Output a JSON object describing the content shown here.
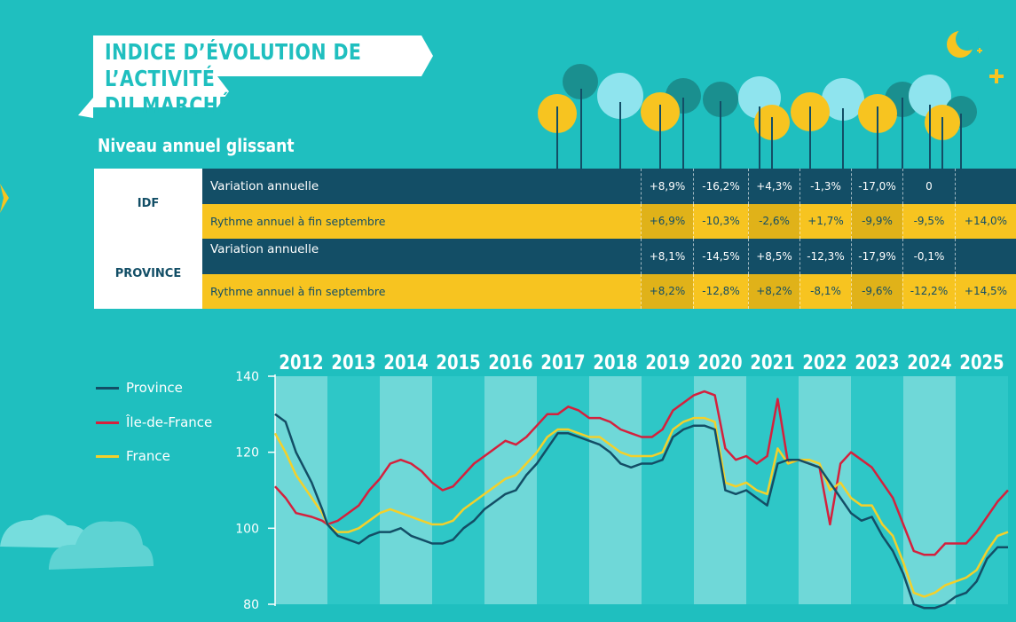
{
  "header": {
    "title_line1": "INDICE D’ÉVOLUTION DE L’ACTIVITÉ",
    "title_line2": "DU MARCHÉ",
    "subtitle": "Niveau annuel glissant"
  },
  "colors": {
    "background": "#1fbfbf",
    "dark_row": "#134e66",
    "yellow_row": "#f7c420",
    "province": "#134e66",
    "idf": "#d4213d",
    "france": "#f4d02a"
  },
  "table": {
    "regions": [
      {
        "name": "IDF",
        "rows": [
          {
            "label": "Variation annuelle",
            "style": "dark",
            "values": [
              "+8,9%",
              "-16,2%",
              "+4,3%",
              "-1,3%",
              "-17,0%",
              "0",
              ""
            ]
          },
          {
            "label": "Rythme annuel à fin septembre",
            "style": "yellow",
            "values": [
              "+6,9%",
              "-10,3%",
              "-2,6%",
              "+1,7%",
              "-9,9%",
              "-9,5%",
              "+14,0%"
            ]
          }
        ]
      },
      {
        "name": "PROVINCE",
        "rows": [
          {
            "label": "Variation annuelle",
            "style": "dark",
            "values": [
              "+8,1%",
              "-14,5%",
              "+8,5%",
              "-12,3%",
              "-17,9%",
              "-0,1%",
              ""
            ]
          },
          {
            "label": "Rythme annuel à fin septembre",
            "style": "yellow",
            "values": [
              "+8,2%",
              "-12,8%",
              "+8,2%",
              "-8,1%",
              "-9,6%",
              "-12,2%",
              "+14,5%"
            ]
          }
        ]
      }
    ]
  },
  "legend": [
    {
      "name": "Province",
      "color": "#134e66"
    },
    {
      "name": "Île-de-France",
      "color": "#d4213d"
    },
    {
      "name": "France",
      "color": "#f4d02a"
    }
  ],
  "chart_data": {
    "type": "line",
    "x_categories": [
      "2012",
      "2013",
      "2014",
      "2015",
      "2016",
      "2017",
      "2018",
      "2019",
      "2020",
      "2021",
      "2022",
      "2023",
      "2024",
      "2025"
    ],
    "ylim": [
      80,
      140
    ],
    "yticks": [
      80,
      100,
      120,
      140
    ],
    "ytick_labels": [
      "80",
      "100",
      "120",
      "140"
    ],
    "series": [
      {
        "name": "Province",
        "points": [
          [
            0.0,
            130
          ],
          [
            0.2,
            128
          ],
          [
            0.4,
            120
          ],
          [
            0.7,
            112
          ],
          [
            0.9,
            105
          ],
          [
            1.0,
            101
          ],
          [
            1.2,
            98
          ],
          [
            1.4,
            97
          ],
          [
            1.6,
            96
          ],
          [
            1.8,
            98
          ],
          [
            2.0,
            99
          ],
          [
            2.2,
            99
          ],
          [
            2.4,
            100
          ],
          [
            2.6,
            98
          ],
          [
            2.8,
            97
          ],
          [
            3.0,
            96
          ],
          [
            3.2,
            96
          ],
          [
            3.4,
            97
          ],
          [
            3.6,
            100
          ],
          [
            3.8,
            102
          ],
          [
            4.0,
            105
          ],
          [
            4.2,
            107
          ],
          [
            4.4,
            109
          ],
          [
            4.6,
            110
          ],
          [
            4.8,
            114
          ],
          [
            5.0,
            117
          ],
          [
            5.2,
            121
          ],
          [
            5.4,
            125
          ],
          [
            5.6,
            125
          ],
          [
            5.8,
            124
          ],
          [
            6.0,
            123
          ],
          [
            6.2,
            122
          ],
          [
            6.4,
            120
          ],
          [
            6.6,
            117
          ],
          [
            6.8,
            116
          ],
          [
            7.0,
            117
          ],
          [
            7.2,
            117
          ],
          [
            7.4,
            118
          ],
          [
            7.6,
            124
          ],
          [
            7.8,
            126
          ],
          [
            8.0,
            127
          ],
          [
            8.2,
            127
          ],
          [
            8.4,
            126
          ],
          [
            8.6,
            110
          ],
          [
            8.8,
            109
          ],
          [
            9.0,
            110
          ],
          [
            9.2,
            108
          ],
          [
            9.4,
            106
          ],
          [
            9.6,
            117
          ],
          [
            9.8,
            118
          ],
          [
            10.0,
            118
          ],
          [
            10.2,
            117
          ],
          [
            10.4,
            116
          ],
          [
            10.6,
            112
          ],
          [
            10.8,
            108
          ],
          [
            11.0,
            104
          ],
          [
            11.2,
            102
          ],
          [
            11.4,
            103
          ],
          [
            11.6,
            98
          ],
          [
            11.8,
            94
          ],
          [
            12.0,
            88
          ],
          [
            12.2,
            80
          ],
          [
            12.4,
            79
          ],
          [
            12.6,
            79
          ],
          [
            12.8,
            80
          ],
          [
            13.0,
            82
          ],
          [
            13.2,
            83
          ],
          [
            13.4,
            86
          ],
          [
            13.6,
            92
          ],
          [
            13.8,
            95
          ],
          [
            14.0,
            95
          ]
        ]
      },
      {
        "name": "Île-de-France",
        "points": [
          [
            0.0,
            111
          ],
          [
            0.2,
            108
          ],
          [
            0.4,
            104
          ],
          [
            0.7,
            103
          ],
          [
            0.9,
            102
          ],
          [
            1.0,
            101
          ],
          [
            1.2,
            102
          ],
          [
            1.4,
            104
          ],
          [
            1.6,
            106
          ],
          [
            1.8,
            110
          ],
          [
            2.0,
            113
          ],
          [
            2.2,
            117
          ],
          [
            2.4,
            118
          ],
          [
            2.6,
            117
          ],
          [
            2.8,
            115
          ],
          [
            3.0,
            112
          ],
          [
            3.2,
            110
          ],
          [
            3.4,
            111
          ],
          [
            3.6,
            114
          ],
          [
            3.8,
            117
          ],
          [
            4.0,
            119
          ],
          [
            4.2,
            121
          ],
          [
            4.4,
            123
          ],
          [
            4.6,
            122
          ],
          [
            4.8,
            124
          ],
          [
            5.0,
            127
          ],
          [
            5.2,
            130
          ],
          [
            5.4,
            130
          ],
          [
            5.6,
            132
          ],
          [
            5.8,
            131
          ],
          [
            6.0,
            129
          ],
          [
            6.2,
            129
          ],
          [
            6.4,
            128
          ],
          [
            6.6,
            126
          ],
          [
            6.8,
            125
          ],
          [
            7.0,
            124
          ],
          [
            7.2,
            124
          ],
          [
            7.4,
            126
          ],
          [
            7.6,
            131
          ],
          [
            7.8,
            133
          ],
          [
            8.0,
            135
          ],
          [
            8.2,
            136
          ],
          [
            8.4,
            135
          ],
          [
            8.6,
            121
          ],
          [
            8.8,
            118
          ],
          [
            9.0,
            119
          ],
          [
            9.2,
            117
          ],
          [
            9.4,
            119
          ],
          [
            9.6,
            134
          ],
          [
            9.8,
            117
          ],
          [
            10.0,
            118
          ],
          [
            10.2,
            117
          ],
          [
            10.4,
            116
          ],
          [
            10.6,
            101
          ],
          [
            10.8,
            117
          ],
          [
            11.0,
            120
          ],
          [
            11.2,
            118
          ],
          [
            11.4,
            116
          ],
          [
            11.6,
            112
          ],
          [
            11.8,
            108
          ],
          [
            12.0,
            101
          ],
          [
            12.2,
            94
          ],
          [
            12.4,
            93
          ],
          [
            12.6,
            93
          ],
          [
            12.8,
            96
          ],
          [
            13.0,
            96
          ],
          [
            13.2,
            96
          ],
          [
            13.4,
            99
          ],
          [
            13.6,
            103
          ],
          [
            13.8,
            107
          ],
          [
            14.0,
            110
          ]
        ]
      },
      {
        "name": "France",
        "points": [
          [
            0.0,
            125
          ],
          [
            0.2,
            120
          ],
          [
            0.4,
            114
          ],
          [
            0.7,
            108
          ],
          [
            0.9,
            104
          ],
          [
            1.0,
            101
          ],
          [
            1.2,
            99
          ],
          [
            1.4,
            99
          ],
          [
            1.6,
            100
          ],
          [
            1.8,
            102
          ],
          [
            2.0,
            104
          ],
          [
            2.2,
            105
          ],
          [
            2.4,
            104
          ],
          [
            2.6,
            103
          ],
          [
            2.8,
            102
          ],
          [
            3.0,
            101
          ],
          [
            3.2,
            101
          ],
          [
            3.4,
            102
          ],
          [
            3.6,
            105
          ],
          [
            3.8,
            107
          ],
          [
            4.0,
            109
          ],
          [
            4.2,
            111
          ],
          [
            4.4,
            113
          ],
          [
            4.6,
            114
          ],
          [
            4.8,
            117
          ],
          [
            5.0,
            120
          ],
          [
            5.2,
            124
          ],
          [
            5.4,
            126
          ],
          [
            5.6,
            126
          ],
          [
            5.8,
            125
          ],
          [
            6.0,
            124
          ],
          [
            6.2,
            124
          ],
          [
            6.4,
            122
          ],
          [
            6.6,
            120
          ],
          [
            6.8,
            119
          ],
          [
            7.0,
            119
          ],
          [
            7.2,
            119
          ],
          [
            7.4,
            120
          ],
          [
            7.6,
            126
          ],
          [
            7.8,
            128
          ],
          [
            8.0,
            129
          ],
          [
            8.2,
            129
          ],
          [
            8.4,
            128
          ],
          [
            8.6,
            112
          ],
          [
            8.8,
            111
          ],
          [
            9.0,
            112
          ],
          [
            9.2,
            110
          ],
          [
            9.4,
            109
          ],
          [
            9.6,
            121
          ],
          [
            9.8,
            117
          ],
          [
            10.0,
            118
          ],
          [
            10.2,
            118
          ],
          [
            10.4,
            117
          ],
          [
            10.6,
            110
          ],
          [
            10.8,
            112
          ],
          [
            11.0,
            108
          ],
          [
            11.2,
            106
          ],
          [
            11.4,
            106
          ],
          [
            11.6,
            101
          ],
          [
            11.8,
            98
          ],
          [
            12.0,
            91
          ],
          [
            12.2,
            83
          ],
          [
            12.4,
            82
          ],
          [
            12.6,
            83
          ],
          [
            12.8,
            85
          ],
          [
            13.0,
            86
          ],
          [
            13.2,
            87
          ],
          [
            13.4,
            89
          ],
          [
            13.6,
            94
          ],
          [
            13.8,
            98
          ],
          [
            14.0,
            99
          ]
        ]
      }
    ],
    "note": "x values are fractional year index from start of 2012 (0) to end of 2025 (14)"
  }
}
